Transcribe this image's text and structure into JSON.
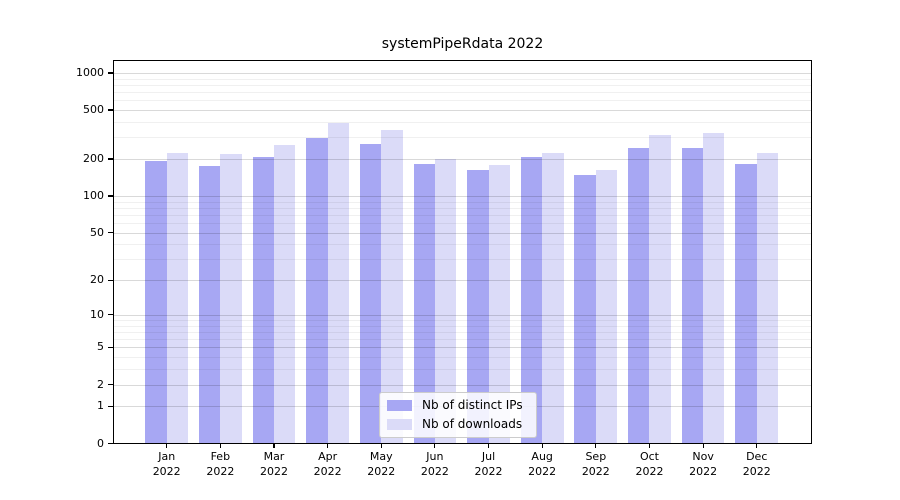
{
  "title": "systemPipeRdata 2022",
  "chart_data": {
    "type": "bar",
    "title": "systemPipeRdata 2022",
    "categories": [
      "Jan",
      "Feb",
      "Mar",
      "Apr",
      "May",
      "Jun",
      "Jul",
      "Aug",
      "Sep",
      "Oct",
      "Nov",
      "Dec"
    ],
    "category_year": "2022",
    "series": [
      {
        "name": "Nb of distinct IPs",
        "color": "#a7a7f3",
        "values": [
          192,
          175,
          209,
          299,
          267,
          184,
          162,
          210,
          149,
          248,
          244,
          184
        ]
      },
      {
        "name": "Nb of downloads",
        "color": "#dbdbf8",
        "values": [
          226,
          219,
          262,
          396,
          347,
          199,
          178,
          224,
          163,
          316,
          326,
          224
        ]
      }
    ],
    "yscale": "log1p",
    "y_axis_tick_labels": [
      "1000",
      "500",
      "200",
      "100",
      "50",
      "20",
      "10",
      "5",
      "2",
      "1",
      "0"
    ],
    "y_axis_tick_values": [
      1000,
      500,
      200,
      100,
      50,
      20,
      10,
      5,
      2,
      1,
      0
    ],
    "y_minor_tick_values": [
      3,
      4,
      6,
      7,
      8,
      9,
      30,
      40,
      60,
      70,
      80,
      90,
      300,
      400,
      600,
      700,
      800,
      900
    ],
    "ylim": [
      0,
      1270
    ],
    "xlabel": "",
    "ylabel": "",
    "grid": true,
    "legend_position": "bottom-center"
  }
}
